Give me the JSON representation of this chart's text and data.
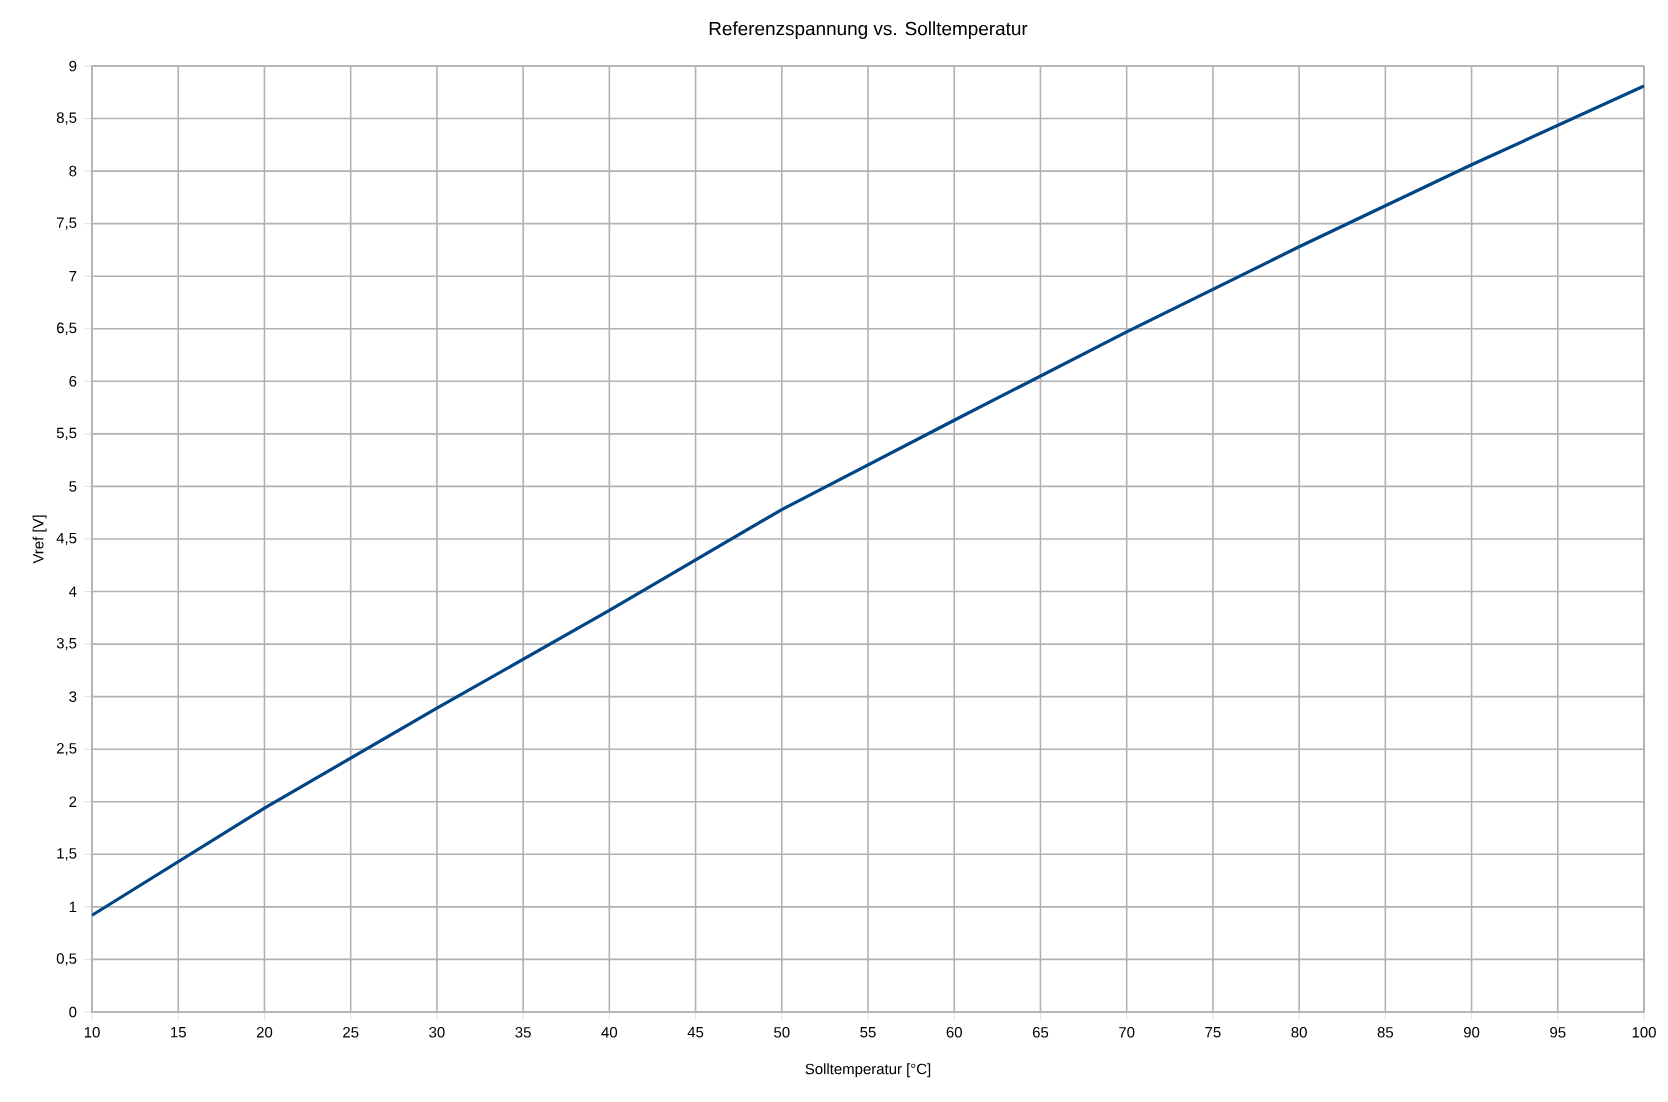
{
  "chart_data": {
    "type": "line",
    "title": "Referenzspannung vs. Solltemperatur",
    "xlabel": "Solltemperatur [°C]",
    "ylabel": "Vref [V]",
    "x": [
      10,
      20,
      30,
      40,
      50,
      60,
      70,
      80,
      90,
      100
    ],
    "series": [
      {
        "color": "#004586",
        "values": [
          0.92,
          1.94,
          2.89,
          3.82,
          4.78,
          5.63,
          6.47,
          7.28,
          8.06,
          8.81
        ]
      }
    ],
    "xlim": [
      10,
      100
    ],
    "ylim": [
      0,
      9
    ],
    "xticks": [
      10,
      15,
      20,
      25,
      30,
      35,
      40,
      45,
      50,
      55,
      60,
      65,
      70,
      75,
      80,
      85,
      90,
      95,
      100
    ],
    "yticks": [
      0,
      {
        "value": 0.5,
        "label": "0,5"
      },
      1,
      {
        "value": 1.5,
        "label": "1,5"
      },
      2,
      {
        "value": 2.5,
        "label": "2,5"
      },
      3,
      {
        "value": 3.5,
        "label": "3,5"
      },
      4,
      {
        "value": 4.5,
        "label": "4,5"
      },
      5,
      {
        "value": 5.5,
        "label": "5,5"
      },
      6,
      {
        "value": 6.5,
        "label": "6,5"
      },
      7,
      {
        "value": 7.5,
        "label": "7,5"
      },
      8,
      {
        "value": 8.5,
        "label": "8,5"
      },
      9
    ],
    "grid": true,
    "marker": "none",
    "line_style": "solid"
  }
}
